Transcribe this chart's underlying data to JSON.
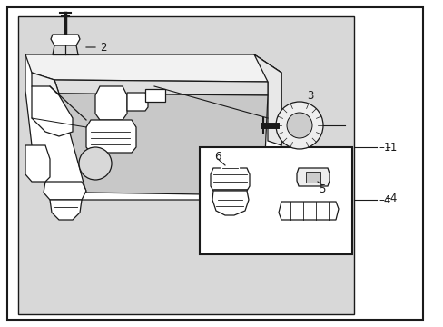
{
  "bg_color": "#ffffff",
  "stipple_color": "#d0d0d0",
  "line_color": "#1a1a1a",
  "fig_width": 4.89,
  "fig_height": 3.6,
  "dpi": 100
}
